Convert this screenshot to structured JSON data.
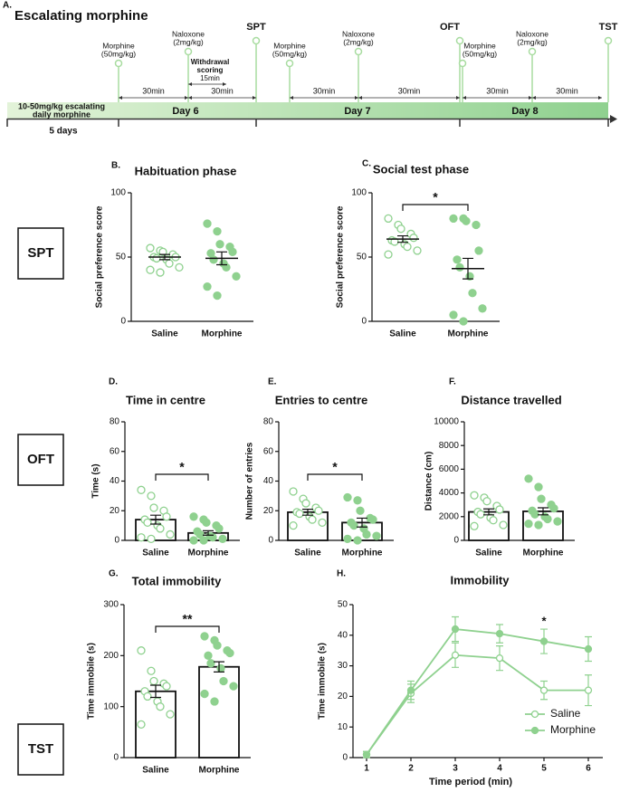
{
  "timeline": {
    "panel": "A.",
    "title": "Escalating morphine",
    "base_label": [
      "10-50mg/kg escalating",
      "daily morphine"
    ],
    "base_duration": "5 days",
    "days": [
      "Day 6",
      "Day 7",
      "Day 8"
    ],
    "events": [
      {
        "label": [
          "Morphine",
          "(50mg/kg)"
        ]
      },
      {
        "label": [
          "Naloxone",
          "(2mg/kg)"
        ]
      },
      {
        "label": [
          "SPT"
        ]
      },
      {
        "label": [
          "Morphine",
          "(50mg/kg)"
        ]
      },
      {
        "label": [
          "Naloxone",
          "(2mg/kg)"
        ]
      },
      {
        "label": [
          "OFT"
        ]
      },
      {
        "label": [
          "Morphine",
          "(50mg/kg)"
        ]
      },
      {
        "label": [
          "Naloxone",
          "(2mg/kg)"
        ]
      },
      {
        "label": [
          "TST"
        ]
      }
    ],
    "intervals": [
      "30min",
      "30min",
      "30min",
      "30min",
      "30min",
      "30min"
    ],
    "withdrawal": {
      "label": [
        "Withdrawal",
        "scoring"
      ],
      "duration": "15min"
    }
  },
  "row_labels": [
    "SPT",
    "OFT",
    "TST"
  ],
  "chart_data": [
    {
      "type": "dot",
      "panel": "B.",
      "title": "Habituation phase",
      "ylabel": "Social preference score",
      "color": "#8fd18f",
      "categories": [
        "Saline",
        "Morphine"
      ],
      "ylim": [
        0,
        100
      ],
      "yticks": [
        0,
        50,
        100
      ],
      "groups": [
        {
          "filled": false,
          "points": [
            57,
            55,
            54,
            52,
            50,
            50,
            49,
            48,
            45,
            42,
            40,
            38
          ],
          "mean": 50,
          "sem": 2
        },
        {
          "filled": true,
          "points": [
            76,
            70,
            60,
            58,
            54,
            53,
            48,
            45,
            42,
            35,
            27,
            20
          ],
          "mean": 49,
          "sem": 5
        }
      ]
    },
    {
      "type": "dot",
      "panel": "C.",
      "title": "Social test phase",
      "ylabel": "Social preference score",
      "color": "#8fd18f",
      "categories": [
        "Saline",
        "Morphine"
      ],
      "ylim": [
        0,
        100
      ],
      "yticks": [
        0,
        50,
        100
      ],
      "significance": "*",
      "groups": [
        {
          "filled": false,
          "points": [
            80,
            75,
            72,
            68,
            65,
            63,
            62,
            60,
            58,
            55,
            52
          ],
          "mean": 64,
          "sem": 2.5
        },
        {
          "filled": true,
          "points": [
            80,
            80,
            78,
            75,
            55,
            48,
            42,
            35,
            22,
            10,
            5,
            0
          ],
          "mean": 41,
          "sem": 8
        }
      ]
    },
    {
      "type": "bar_dot",
      "panel": "D.",
      "title": "Time in centre",
      "ylabel": "Time (s)",
      "color": "#8fd18f",
      "categories": [
        "Saline",
        "Morphine"
      ],
      "ylim": [
        0,
        80
      ],
      "yticks": [
        0,
        20,
        40,
        60,
        80
      ],
      "significance": "*",
      "groups": [
        {
          "filled": false,
          "points": [
            34,
            30,
            22,
            20,
            16,
            14,
            12,
            10,
            8,
            4,
            2,
            1
          ],
          "mean": 14,
          "sem": 3
        },
        {
          "filled": true,
          "points": [
            16,
            14,
            12,
            10,
            8,
            6,
            4,
            3,
            2,
            1,
            0,
            0
          ],
          "mean": 5,
          "sem": 1.5
        }
      ]
    },
    {
      "type": "bar_dot",
      "panel": "E.",
      "title": "Entries to centre",
      "ylabel": "Number of entries",
      "color": "#8fd18f",
      "categories": [
        "Saline",
        "Morphine"
      ],
      "ylim": [
        0,
        80
      ],
      "yticks": [
        0,
        20,
        40,
        60,
        80
      ],
      "significance": "*",
      "groups": [
        {
          "filled": false,
          "points": [
            33,
            28,
            25,
            22,
            20,
            19,
            18,
            16,
            14,
            12,
            10
          ],
          "mean": 19,
          "sem": 2
        },
        {
          "filled": true,
          "points": [
            29,
            27,
            20,
            15,
            14,
            12,
            10,
            8,
            4,
            3,
            1,
            0
          ],
          "mean": 12,
          "sem": 3
        }
      ]
    },
    {
      "type": "bar_dot",
      "panel": "F.",
      "title": "Distance travelled",
      "ylabel": "Distance (cm)",
      "color": "#8fd18f",
      "categories": [
        "Saline",
        "Morphine"
      ],
      "ylim": [
        0,
        10000
      ],
      "yticks": [
        0,
        2000,
        4000,
        6000,
        8000,
        10000
      ],
      "groups": [
        {
          "filled": false,
          "points": [
            3800,
            3600,
            3300,
            2900,
            2600,
            2400,
            2200,
            1900,
            1700,
            1300,
            1200
          ],
          "mean": 2400,
          "sem": 250
        },
        {
          "filled": true,
          "points": [
            5200,
            4500,
            3500,
            3000,
            2700,
            2500,
            2200,
            2000,
            1800,
            1600,
            1400,
            1300
          ],
          "mean": 2450,
          "sem": 300
        }
      ]
    },
    {
      "type": "bar_dot",
      "panel": "G.",
      "title": "Total immobility",
      "ylabel": "Time immobile (s)",
      "color": "#8fd18f",
      "categories": [
        "Saline",
        "Morphine"
      ],
      "ylim": [
        0,
        300
      ],
      "yticks": [
        0,
        100,
        200,
        300
      ],
      "significance": "**",
      "groups": [
        {
          "filled": false,
          "points": [
            210,
            170,
            150,
            145,
            140,
            130,
            120,
            110,
            100,
            85,
            65
          ],
          "mean": 130,
          "sem": 12
        },
        {
          "filled": true,
          "points": [
            238,
            230,
            220,
            210,
            205,
            200,
            185,
            175,
            150,
            140,
            125,
            110
          ],
          "mean": 178,
          "sem": 10
        }
      ]
    },
    {
      "type": "line",
      "panel": "H.",
      "title": "Immobility",
      "ylabel": "Time immobile (s)",
      "xlabel": "Time period (min)",
      "color": "#8fd18f",
      "x": [
        1,
        2,
        3,
        4,
        5,
        6
      ],
      "xlim": [
        1,
        6
      ],
      "xticks": [
        1,
        2,
        3,
        4,
        5,
        6
      ],
      "ylim": [
        0,
        50
      ],
      "yticks": [
        0,
        10,
        20,
        30,
        40,
        50
      ],
      "legend": "lower right",
      "annotations": [
        {
          "x": 5,
          "text": "*"
        }
      ],
      "series": [
        {
          "name": "Saline",
          "filled": false,
          "values": [
            1,
            21,
            33.5,
            32.5,
            22,
            22
          ],
          "errors": [
            1,
            3,
            4,
            4,
            3,
            5
          ]
        },
        {
          "name": "Morphine",
          "filled": true,
          "values": [
            1,
            22,
            42,
            40.5,
            38,
            35.5
          ],
          "errors": [
            1,
            3,
            4,
            3,
            4,
            4
          ]
        }
      ]
    }
  ]
}
